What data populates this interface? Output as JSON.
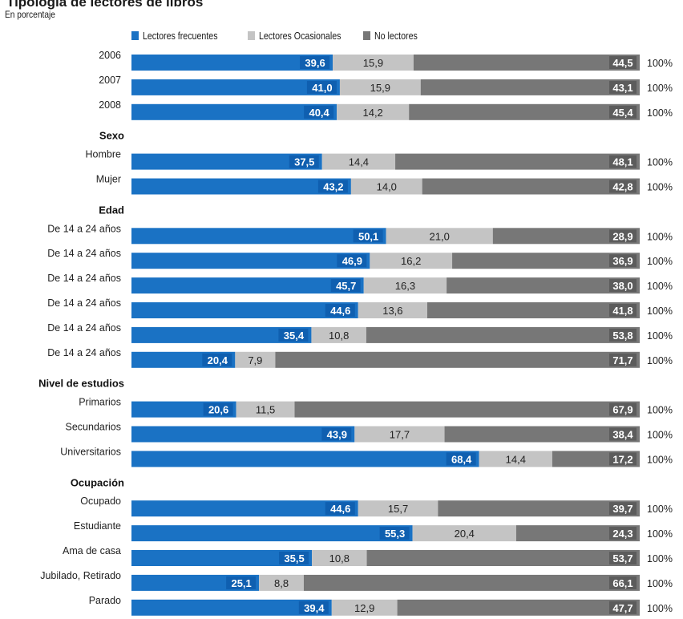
{
  "chart_data": {
    "type": "bar",
    "stacked": true,
    "orientation": "horizontal",
    "title": "Tipología de lectores de libros",
    "subtitle": "En porcentaje",
    "series": [
      {
        "name": "Lectores frecuentes",
        "color": "#1a72c4"
      },
      {
        "name": "Lectores Ocasionales",
        "color": "#c4c4c4"
      },
      {
        "name": "No lectores",
        "color": "#777777"
      }
    ],
    "total_label": "100%",
    "rows": [
      {
        "kind": "bar",
        "label": "2006",
        "values": [
          "39,6",
          "15,9",
          "44,5"
        ]
      },
      {
        "kind": "bar",
        "label": "2007",
        "values": [
          "41,0",
          "15,9",
          "43,1"
        ]
      },
      {
        "kind": "bar",
        "label": "2008",
        "values": [
          "40,4",
          "14,2",
          "45,4"
        ]
      },
      {
        "kind": "header",
        "label": "Sexo"
      },
      {
        "kind": "bar",
        "label": "Hombre",
        "values": [
          "37,5",
          "14,4",
          "48,1"
        ]
      },
      {
        "kind": "bar",
        "label": "Mujer",
        "values": [
          "43,2",
          "14,0",
          "42,8"
        ]
      },
      {
        "kind": "header",
        "label": "Edad"
      },
      {
        "kind": "bar",
        "label": "De 14 a 24 años",
        "values": [
          "50,1",
          "21,0",
          "28,9"
        ]
      },
      {
        "kind": "bar",
        "label": "De 14 a 24 años",
        "values": [
          "46,9",
          "16,2",
          "36,9"
        ]
      },
      {
        "kind": "bar",
        "label": "De 14 a 24 años",
        "values": [
          "45,7",
          "16,3",
          "38,0"
        ]
      },
      {
        "kind": "bar",
        "label": "De 14 a 24 años",
        "values": [
          "44,6",
          "13,6",
          "41,8"
        ]
      },
      {
        "kind": "bar",
        "label": "De 14 a 24 años",
        "values": [
          "35,4",
          "10,8",
          "53,8"
        ]
      },
      {
        "kind": "bar",
        "label": "De 14 a 24 años",
        "values": [
          "20,4",
          "7,9",
          "71,7"
        ]
      },
      {
        "kind": "header",
        "label": "Nivel de estudios"
      },
      {
        "kind": "bar",
        "label": "Primarios",
        "values": [
          "20,6",
          "11,5",
          "67,9"
        ]
      },
      {
        "kind": "bar",
        "label": "Secundarios",
        "values": [
          "43,9",
          "17,7",
          "38,4"
        ]
      },
      {
        "kind": "bar",
        "label": "Universitarios",
        "values": [
          "68,4",
          "14,4",
          "17,2"
        ]
      },
      {
        "kind": "header",
        "label": "Ocupación"
      },
      {
        "kind": "bar",
        "label": "Ocupado",
        "values": [
          "44,6",
          "15,7",
          "39,7"
        ]
      },
      {
        "kind": "bar",
        "label": "Estudiante",
        "values": [
          "55,3",
          "20,4",
          "24,3"
        ]
      },
      {
        "kind": "bar",
        "label": "Ama de casa",
        "values": [
          "35,5",
          "10,8",
          "53,7"
        ]
      },
      {
        "kind": "bar",
        "label": "Jubilado, Retirado",
        "values": [
          "25,1",
          "8,8",
          "66,1"
        ]
      },
      {
        "kind": "bar",
        "label": "Parado",
        "values": [
          "39,4",
          "12,9",
          "47,7"
        ]
      }
    ]
  }
}
